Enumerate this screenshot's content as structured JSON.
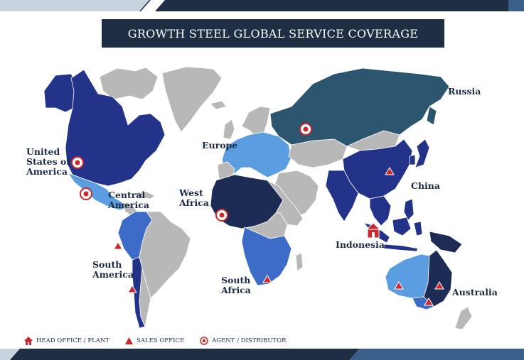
{
  "title": "GROWTH STEEL GLOBAL SERVICE COVERAGE",
  "regions": {
    "usa": "United\nStates of\nAmerica",
    "central_america": "Central\nAmerica",
    "south_america": "South\nAmerica",
    "europe": "Europe",
    "west_africa": "West\nAfrica",
    "south_africa": "South\nAfrica",
    "russia": "Russia",
    "china": "China",
    "indonesia": "Indonesia",
    "australia": "Australia"
  },
  "legend": {
    "head_office": "HEAD OFFICE / PLANT",
    "sales_office": "SALES OFFICE",
    "agent": "AGENT / DISTRIBUTOR"
  },
  "colors": {
    "dark_navy": "#1c2c54",
    "royal_blue": "#24338a",
    "medium_blue": "#3c6cc8",
    "light_blue": "#5a9de0",
    "teal": "#2c5570",
    "gray": "#b8b8b8",
    "title_bg": "#1e2f45",
    "marker_red": "#c8282e"
  },
  "icons": {
    "head_office": "house-icon",
    "sales_office": "triangle-icon",
    "agent": "target-icon"
  }
}
